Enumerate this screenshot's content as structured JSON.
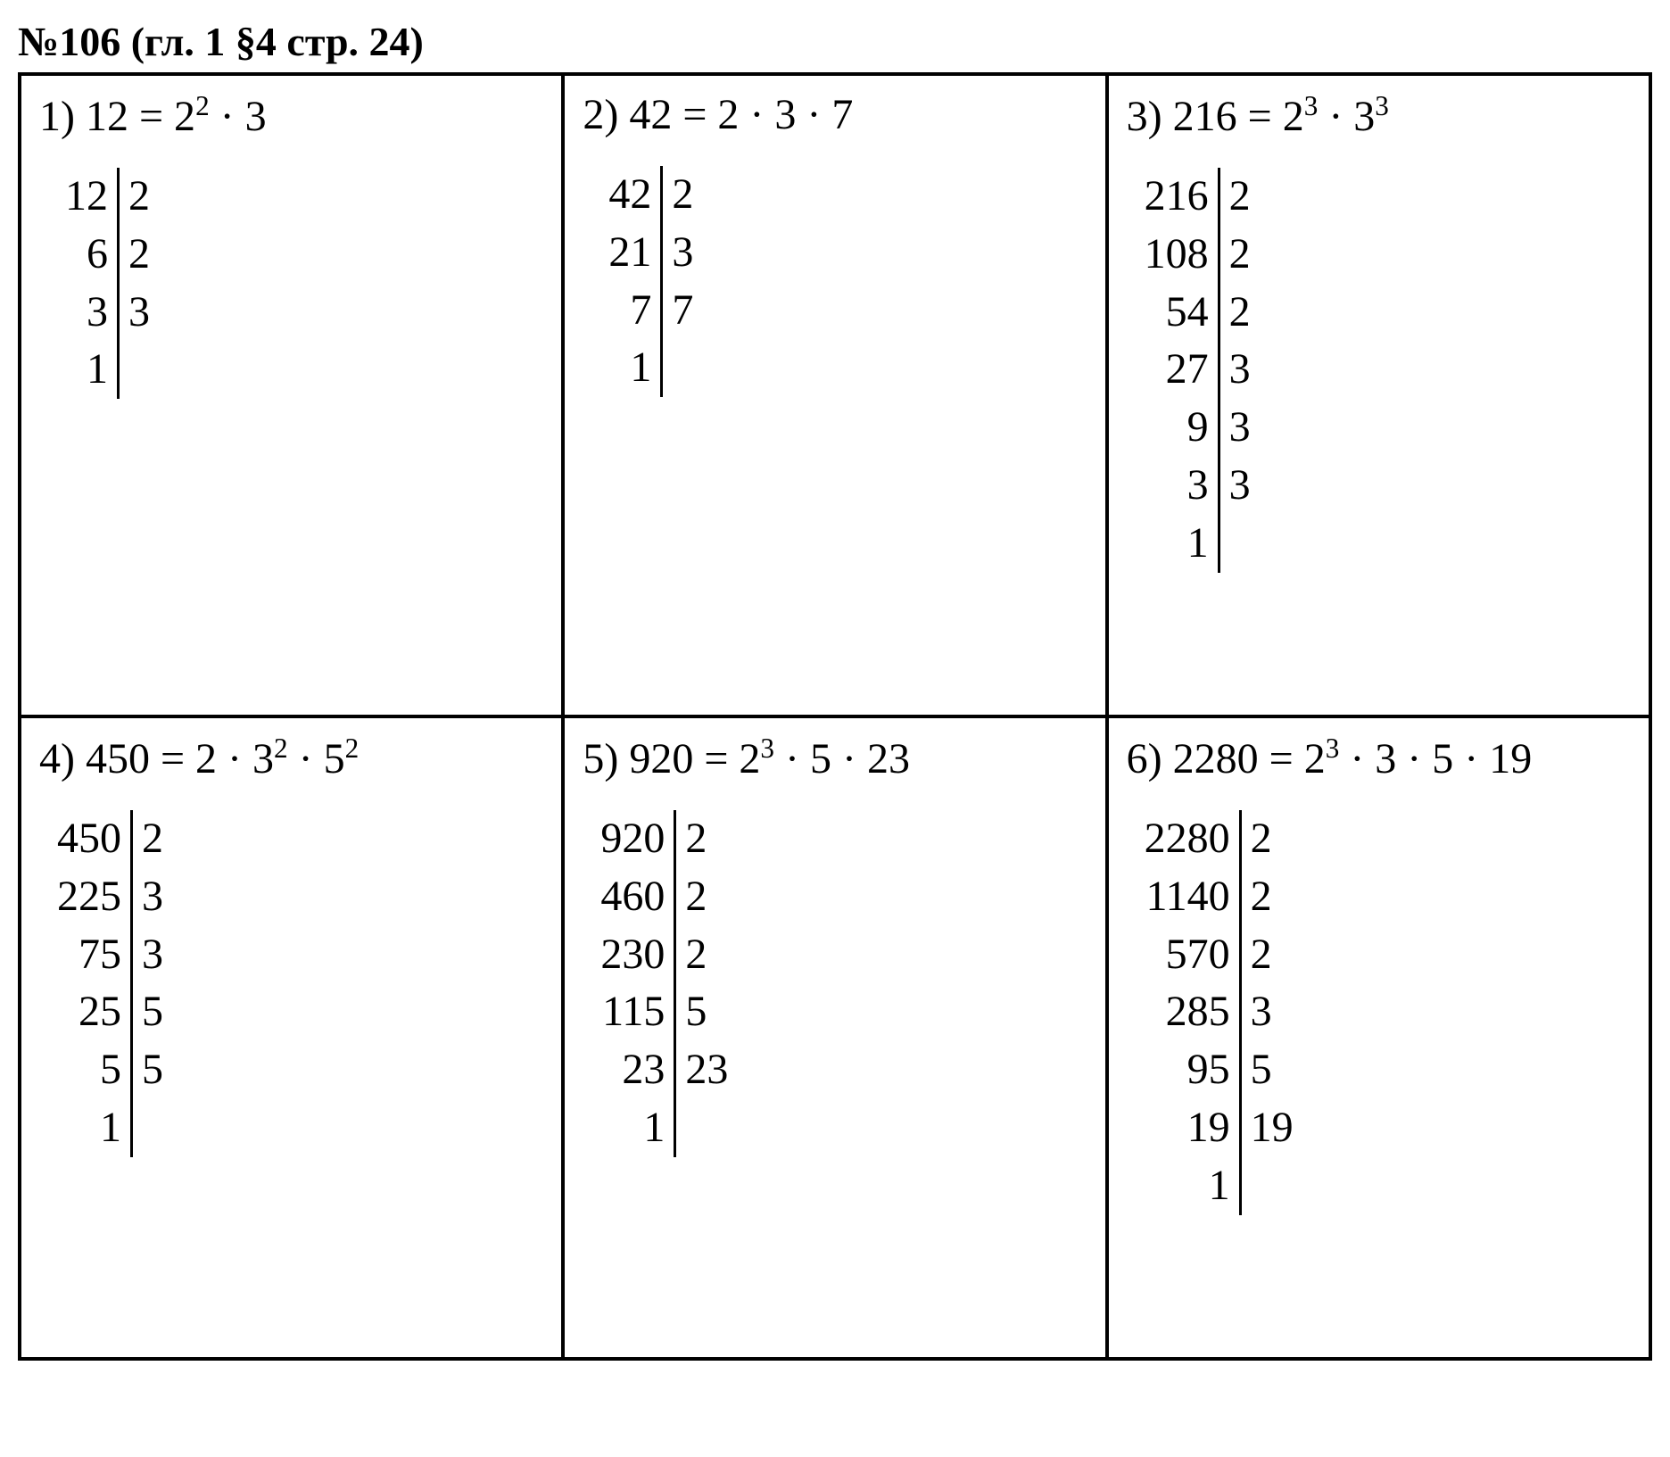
{
  "title": "№106 (гл. 1 §4 стр. 24)",
  "problems": [
    {
      "label": "1)",
      "equation_parts": [
        "12 = 2",
        "2",
        " · 3"
      ],
      "superscript_indices": [
        1
      ],
      "ladder": {
        "left": [
          "12",
          "6",
          "3",
          "1"
        ],
        "right": [
          "2",
          "2",
          "3",
          ""
        ]
      }
    },
    {
      "label": "2)",
      "equation_parts": [
        "42 = 2 · 3 · 7"
      ],
      "superscript_indices": [],
      "ladder": {
        "left": [
          "42",
          "21",
          "7",
          "1"
        ],
        "right": [
          "2",
          "3",
          "7",
          ""
        ]
      }
    },
    {
      "label": "3)",
      "equation_parts": [
        "216 = 2",
        "3",
        " · 3",
        "3"
      ],
      "superscript_indices": [
        1,
        3
      ],
      "ladder": {
        "left": [
          "216",
          "108",
          "54",
          "27",
          "9",
          "3",
          "1"
        ],
        "right": [
          "2",
          "2",
          "2",
          "3",
          "3",
          "3",
          ""
        ]
      }
    },
    {
      "label": "4)",
      "equation_parts": [
        "450 = 2 · 3",
        "2",
        " · 5",
        "2"
      ],
      "superscript_indices": [
        1,
        3
      ],
      "ladder": {
        "left": [
          "450",
          "225",
          "75",
          "25",
          "5",
          "1"
        ],
        "right": [
          "2",
          "3",
          "3",
          "5",
          "5",
          ""
        ]
      }
    },
    {
      "label": "5)",
      "equation_parts": [
        "920 = 2",
        "3",
        " · 5 · 23"
      ],
      "superscript_indices": [
        1
      ],
      "ladder": {
        "left": [
          "920",
          "460",
          "230",
          "115",
          "23",
          "1"
        ],
        "right": [
          "2",
          "2",
          "2",
          "5",
          "23",
          ""
        ]
      }
    },
    {
      "label": "6)",
      "equation_parts": [
        "2280 = 2",
        "3",
        " · 3 · 5 · 19"
      ],
      "superscript_indices": [
        1
      ],
      "ladder": {
        "left": [
          "2280",
          "1140",
          "570",
          "285",
          "95",
          "19",
          "1"
        ],
        "right": [
          "2",
          "2",
          "2",
          "3",
          "5",
          "19",
          ""
        ]
      }
    }
  ],
  "colors": {
    "text": "#000000",
    "background": "#ffffff",
    "border": "#000000"
  }
}
